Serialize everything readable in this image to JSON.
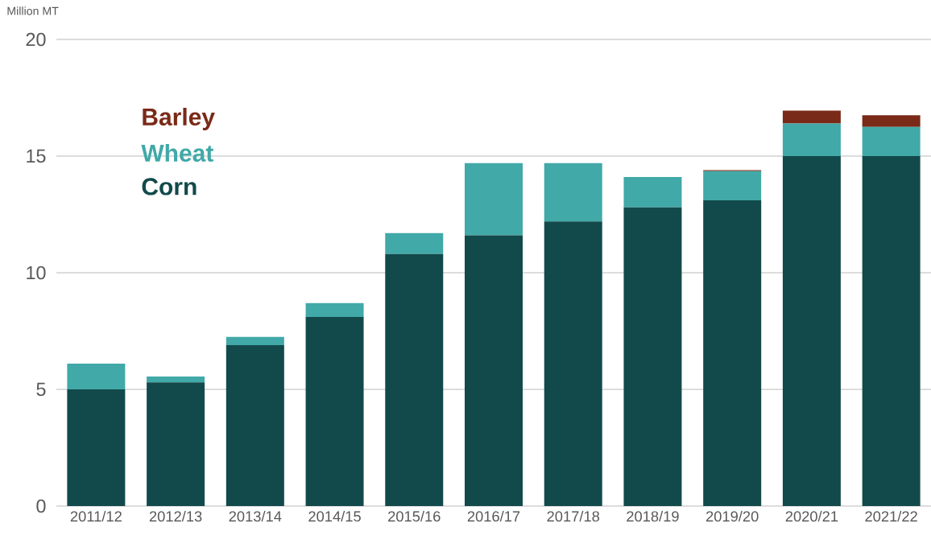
{
  "chart_data": {
    "type": "bar",
    "stacked": true,
    "ylabel": "Million MT",
    "categories": [
      "2011/12",
      "2012/13",
      "2013/14",
      "2014/15",
      "2015/16",
      "2016/17",
      "2017/18",
      "2018/19",
      "2019/20",
      "2020/21",
      "2021/22"
    ],
    "series": [
      {
        "name": "Corn",
        "color": "#124a4b",
        "values": [
          5.0,
          5.3,
          6.9,
          8.1,
          10.8,
          11.6,
          12.2,
          12.8,
          13.1,
          15.0,
          15.0
        ]
      },
      {
        "name": "Wheat",
        "color": "#41a9a8",
        "values": [
          1.1,
          0.25,
          0.35,
          0.6,
          0.9,
          3.1,
          2.5,
          1.3,
          1.25,
          1.4,
          1.25
        ]
      },
      {
        "name": "Barley",
        "color": "#7a2a18",
        "values": [
          0,
          0,
          0,
          0,
          0,
          0,
          0,
          0,
          0.05,
          0.55,
          0.5
        ]
      }
    ],
    "ylim": [
      0,
      20
    ],
    "yticks": [
      0,
      5,
      10,
      15,
      20
    ],
    "grid": "y",
    "legend": "top left"
  }
}
